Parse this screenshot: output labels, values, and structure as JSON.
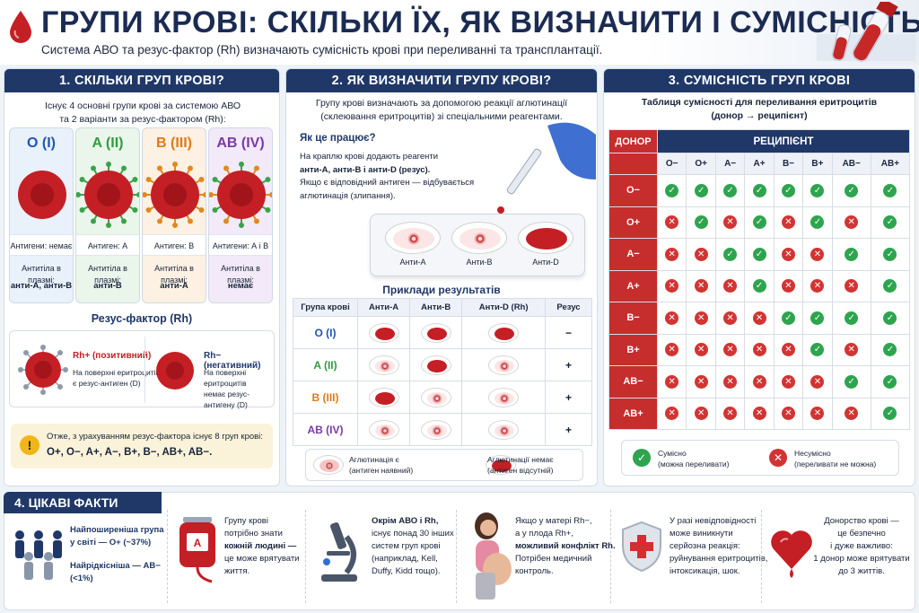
{
  "header": {
    "title": "ГРУПИ КРОВІ: СКІЛЬКИ ЇХ, ЯК ВИЗНАЧИТИ І СУМІСНІСТЬ",
    "subtitle": "Система АВО та резус-фактор (Rh) визначають сумісність крові при переливанні та трансплантації.",
    "icons": [
      "blood-drop-icon",
      "blood-tubes-icon"
    ]
  },
  "panel1": {
    "title": "1. СКІЛЬКИ ГРУП КРОВІ?",
    "intro_1": "Існує 4 основні групи крові за системою АВО",
    "intro_2": "та 2 варіанти за резус-фактором (Rh):",
    "groups": [
      {
        "name": "O (I)",
        "color": "#1f56b5",
        "bg": "#e9f1fb",
        "antigens": "Антигени: немає",
        "plasma_label": "Антитіла в плазмі:",
        "plasma": "анти-А, анти-В"
      },
      {
        "name": "A (II)",
        "color": "#2e9d3f",
        "bg": "#eaf6ec",
        "antigens": "Антиген: А",
        "plasma_label": "Антитіла в плазмі:",
        "plasma": "анти-В"
      },
      {
        "name": "B (III)",
        "color": "#de7a16",
        "bg": "#fdf1e3",
        "antigens": "Антиген: В",
        "plasma_label": "Антитіла в плазмі:",
        "plasma": "анти-А"
      },
      {
        "name": "AB (IV)",
        "color": "#7a3aa6",
        "bg": "#f2eaf8",
        "antigens": "Антигени: А і В",
        "plasma_label": "Антитіла в плазмі:",
        "plasma": "немає"
      }
    ],
    "rh_title": "Резус-фактор (Rh)",
    "rh_pos": {
      "label": "Rh+ (позитивний)",
      "desc_1": "На поверхні еритроцитів",
      "desc_2": "є резус-антиген (D)"
    },
    "rh_neg": {
      "label": "Rh− (негативний)",
      "desc_1": "На поверхні еритроцитів",
      "desc_2": "немає резус-антигену (D)"
    },
    "note_1": "Отже, з урахуванням резус-фактора існує 8 груп крові:",
    "note_2": "O+, O−, A+, A−, B+, B−, AB+, AB−."
  },
  "panel2": {
    "title": "2. ЯК ВИЗНАЧИТИ ГРУПУ КРОВІ?",
    "intro_1": "Групу крові визначають за допомогою реакції аглютинації",
    "intro_2": "(склеювання еритроцитів) зі спеціальними реагентами.",
    "how_title": "Як це працює?",
    "how_1": "На краплю крові додають реагенти",
    "how_2": "анти-А, анти-В і анти-D (резус).",
    "how_3": "Якщо є відповідний антиген — відбувається",
    "how_4": "аглютинація (злипання).",
    "slide_labels": [
      "Анти-А",
      "Анти-В",
      "Анти-D"
    ],
    "examples_title": "Приклади результатів",
    "columns": [
      "Група крові",
      "Анти-А",
      "Анти-В",
      "Анти-D (Rh)",
      "Резус"
    ],
    "rows": [
      {
        "group": "O (I)",
        "color": "#1f56b5",
        "results": [
          false,
          false,
          false
        ],
        "rh": "−"
      },
      {
        "group": "A (II)",
        "color": "#2e9d3f",
        "results": [
          true,
          false,
          true
        ],
        "rh": "+"
      },
      {
        "group": "B (III)",
        "color": "#de7a16",
        "results": [
          false,
          true,
          true
        ],
        "rh": "+"
      },
      {
        "group": "AB (IV)",
        "color": "#7a3aa6",
        "results": [
          true,
          true,
          true
        ],
        "rh": "+"
      }
    ],
    "legend_pos_1": "Аглютинація є",
    "legend_pos_2": "(антиген наявний)",
    "legend_neg_1": "Аглютинації немає",
    "legend_neg_2": "(антиген відсутній)"
  },
  "panel3": {
    "title": "3. СУМІСНІСТЬ ГРУП КРОВІ",
    "subtitle_1": "Таблиця сумісності для переливання еритроцитів",
    "subtitle_2": "(донор → реципієнт)",
    "donor_label": "ДОНОР",
    "recipient_label": "РЕЦИПІЄНТ",
    "types": [
      "O−",
      "O+",
      "A−",
      "A+",
      "B−",
      "B+",
      "AB−",
      "AB+"
    ],
    "matrix": [
      [
        1,
        1,
        1,
        1,
        1,
        1,
        1,
        1
      ],
      [
        0,
        1,
        0,
        1,
        0,
        1,
        0,
        1
      ],
      [
        0,
        0,
        1,
        1,
        0,
        0,
        1,
        1
      ],
      [
        0,
        0,
        0,
        1,
        0,
        0,
        0,
        1
      ],
      [
        0,
        0,
        0,
        0,
        1,
        1,
        1,
        1
      ],
      [
        0,
        0,
        0,
        0,
        0,
        1,
        0,
        1
      ],
      [
        0,
        0,
        0,
        0,
        0,
        0,
        1,
        1
      ],
      [
        0,
        0,
        0,
        0,
        0,
        0,
        0,
        1
      ]
    ],
    "legend_ok_1": "Сумісно",
    "legend_ok_2": "(можна переливати)",
    "legend_no_1": "Несумісно",
    "legend_no_2": "(переливати не можна)"
  },
  "panel4": {
    "title": "4. ЦІКАВІ ФАКТИ",
    "f1": {
      "l1": "Найпоширеніша група",
      "l2": "у світі — O+ (~37%)",
      "l3": "Найрідкісніша — AB−",
      "l4": "(<1%)"
    },
    "f2": {
      "l1": "Групу крові",
      "l2": "потрібно знати",
      "l3": "кожній людині —",
      "l4": "це може врятувати",
      "l5": "життя.",
      "bag_label": "A"
    },
    "f3": {
      "l1": "Окрім АВО і Rh,",
      "l2": "існує понад 30 інших",
      "l3": "систем груп крові",
      "l4": "(наприклад, Kell,",
      "l5": "Duffy, Kidd тощо)."
    },
    "f4": {
      "l1": "Якщо у матері Rh−,",
      "l2": "а у плода Rh+,",
      "l3": "можливий конфлікт Rh.",
      "l4": "Потрібен медичний",
      "l5": "контроль."
    },
    "f5": {
      "l1": "У разі невідповідності",
      "l2": "може виникнути",
      "l3": "серйозна реакція:",
      "l4": "руйнування еритроцитів,",
      "l5": "інтоксикація, шок."
    },
    "f6": {
      "l1": "Донорство крові —",
      "l2": "це безпечно",
      "l3": "і дуже важливо:",
      "l4": "1 донор може врятувати",
      "l5": "до 3 життів."
    }
  }
}
